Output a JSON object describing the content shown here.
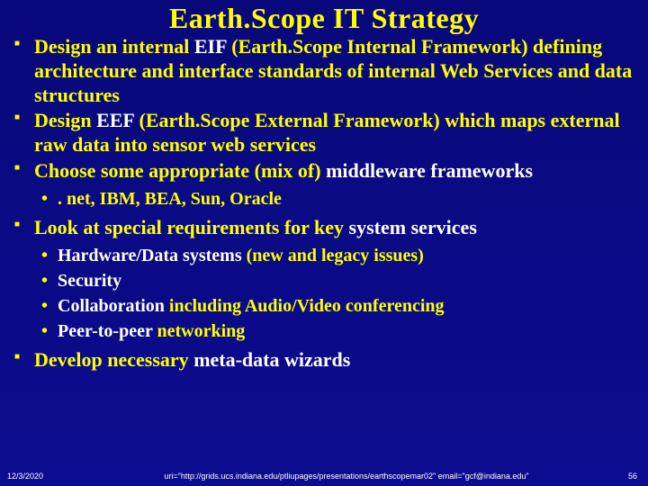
{
  "title": "Earth.Scope IT Strategy",
  "bullets": {
    "b1": {
      "pre": "Design an internal ",
      "em1": "EIF",
      "mid1": " (Earth.Scope Internal Framework) defining architecture and interface standards of internal Web Services and data structures"
    },
    "b2": {
      "pre": "Design ",
      "em1": "EEF",
      "mid1": " (Earth.Scope External Framework) which maps external raw data into sensor web services"
    },
    "b3": {
      "pre": "Choose some appropriate (mix of) ",
      "em1": "middleware frameworks"
    },
    "b3sub1": ". net, IBM, BEA, Sun, Oracle",
    "b4": {
      "pre": "Look at special requirements for key ",
      "em1": "system services"
    },
    "b4sub1": {
      "em": "Hardware/Data systems",
      "rest": " (new and legacy issues)"
    },
    "b4sub2": {
      "em": "Security"
    },
    "b4sub3": {
      "em": "Collaboration",
      "rest": " including Audio/Video conferencing"
    },
    "b4sub4": {
      "em": "Peer-to-peer",
      "rest": " networking"
    },
    "b5": {
      "pre": "Develop necessary ",
      "em1": "meta-data wizards"
    }
  },
  "footer": {
    "date": "12/3/2020",
    "uri": "uri=\"http://grids.ucs.indiana.edu/ptliupages/presentations/earthscopemar02\" email=\"gcf@indiana.edu\"",
    "page": "56"
  },
  "colors": {
    "background_top": "#08087a",
    "background_bottom": "#0c0c90",
    "text_primary": "#ffff00",
    "text_emphasis": "#ffffff"
  }
}
